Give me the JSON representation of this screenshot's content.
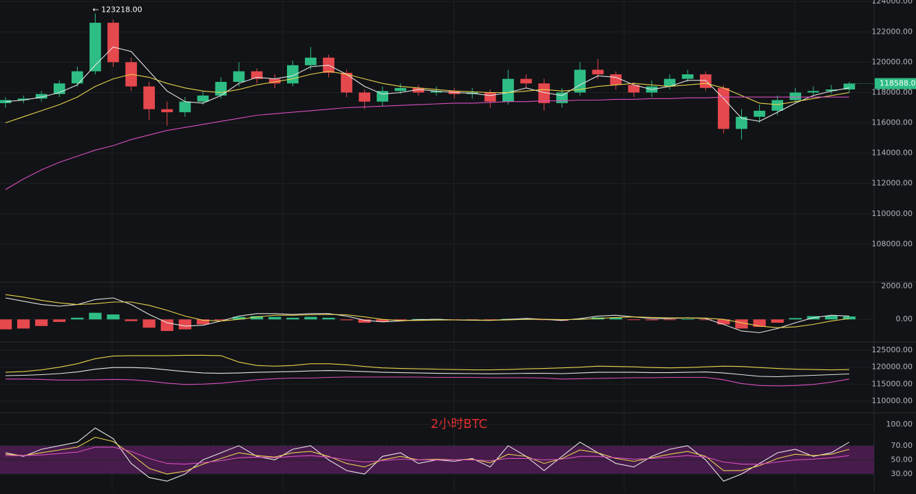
{
  "chart_data": [
    {
      "type": "candlestick",
      "open": [
        117300,
        117500,
        117600,
        117900,
        118600,
        119400,
        122600,
        120000,
        118400,
        116900,
        116700,
        117400,
        117800,
        118700,
        119400,
        118900,
        118600,
        119800,
        120300,
        119300,
        118000,
        117400,
        118100,
        118300,
        118000,
        118100,
        117900,
        118000,
        117400,
        118900,
        118600,
        117300,
        118000,
        119500,
        119200,
        118500,
        118000,
        118400,
        118900,
        119200,
        118300,
        115600,
        116400,
        116800,
        117500,
        118000,
        118100,
        118200
      ],
      "high": [
        117700,
        117800,
        118100,
        118800,
        119700,
        123218,
        122800,
        120300,
        118700,
        117400,
        117700,
        118100,
        119000,
        120000,
        119600,
        119200,
        120100,
        121000,
        120500,
        119500,
        118200,
        118400,
        118600,
        118500,
        118400,
        118300,
        118300,
        118200,
        119500,
        119200,
        118900,
        118300,
        120000,
        120200,
        119400,
        118700,
        118800,
        119200,
        119500,
        119400,
        118500,
        116900,
        117200,
        117800,
        118300,
        118400,
        118500,
        118700
      ],
      "low": [
        117000,
        117300,
        117400,
        117700,
        118400,
        119200,
        119700,
        118100,
        116200,
        115800,
        116400,
        117200,
        117600,
        118400,
        118600,
        118300,
        118400,
        119500,
        119000,
        117700,
        116900,
        117100,
        117900,
        117800,
        117800,
        117600,
        117600,
        117000,
        117200,
        118300,
        116800,
        117000,
        117800,
        118900,
        118200,
        117700,
        117700,
        118200,
        118700,
        118100,
        115300,
        114900,
        116000,
        116500,
        117300,
        117800,
        117900,
        118000
      ],
      "close": [
        117500,
        117600,
        117900,
        118600,
        119400,
        122600,
        120000,
        118400,
        116900,
        116700,
        117400,
        117800,
        118700,
        119400,
        118900,
        118600,
        119800,
        120300,
        119300,
        118000,
        117400,
        118100,
        118300,
        118000,
        118100,
        117900,
        118000,
        117400,
        118900,
        118600,
        117300,
        118000,
        119500,
        119200,
        118500,
        118000,
        118400,
        118900,
        119200,
        118300,
        115600,
        116400,
        116800,
        117500,
        118000,
        118100,
        118200,
        118588
      ],
      "up_color": "#2ebd85",
      "down_color": "#e5484d",
      "series": [
        {
          "color": "#e6e6e6",
          "values": [
            117400,
            117500,
            117700,
            118000,
            118500,
            119800,
            121000,
            120700,
            119400,
            118100,
            117400,
            117300,
            117800,
            118600,
            119000,
            118900,
            119100,
            119700,
            119800,
            119200,
            118400,
            117900,
            118000,
            118200,
            118100,
            118000,
            117950,
            117800,
            118000,
            118300,
            118000,
            117800,
            118500,
            119100,
            119000,
            118500,
            118200,
            118400,
            118800,
            118800,
            117600,
            116300,
            116100,
            116700,
            117300,
            117800,
            118100,
            118300
          ]
        },
        {
          "color": "#e8d44d",
          "values": [
            116000,
            116400,
            116800,
            117200,
            117700,
            118400,
            118900,
            119200,
            119000,
            118600,
            118300,
            118100,
            118000,
            118200,
            118500,
            118700,
            118900,
            119200,
            119400,
            119200,
            118900,
            118600,
            118400,
            118300,
            118200,
            118100,
            118050,
            118000,
            118000,
            118100,
            118200,
            118100,
            118200,
            118400,
            118500,
            118600,
            118500,
            118400,
            118500,
            118600,
            118300,
            117800,
            117300,
            117200,
            117400,
            117600,
            117800,
            118000
          ]
        },
        {
          "color": "#d94fc0",
          "values": [
            111600,
            112300,
            112900,
            113400,
            113800,
            114200,
            114500,
            114900,
            115200,
            115500,
            115700,
            115900,
            116100,
            116300,
            116500,
            116600,
            116700,
            116800,
            116900,
            117000,
            117050,
            117100,
            117150,
            117200,
            117250,
            117300,
            117300,
            117350,
            117400,
            117400,
            117450,
            117450,
            117500,
            117500,
            117550,
            117550,
            117600,
            117600,
            117650,
            117650,
            117700,
            117700,
            117700,
            117700,
            117700,
            117700,
            117700,
            117700
          ]
        }
      ],
      "ylim": [
        105500,
        124100
      ],
      "yticks": [
        {
          "value": 108000,
          "label": "108000.00"
        },
        {
          "value": 110000,
          "label": "110000.00"
        },
        {
          "value": 112000,
          "label": "112000.00"
        },
        {
          "value": 114000,
          "label": "114000.00"
        },
        {
          "value": 116000,
          "label": "116000.00"
        },
        {
          "value": 118000,
          "label": "118000.00"
        },
        {
          "value": 120000,
          "label": "120000.00"
        },
        {
          "value": 122000,
          "label": "122000.00"
        },
        {
          "value": 124000,
          "label": "124000.00"
        }
      ],
      "high_label": "← 123218.00",
      "last_price_label": "118588.00"
    },
    {
      "type": "macd",
      "values": [
        -600,
        -550,
        -400,
        -150,
        100,
        400,
        300,
        -100,
        -500,
        -700,
        -600,
        -300,
        -50,
        150,
        200,
        150,
        100,
        150,
        100,
        -50,
        -200,
        -150,
        -50,
        20,
        30,
        -20,
        -30,
        -40,
        30,
        40,
        -20,
        -80,
        50,
        120,
        100,
        -30,
        -50,
        -10,
        30,
        -20,
        -300,
        -550,
        -450,
        -200,
        80,
        200,
        220,
        180
      ],
      "up_color": "#2ebd85",
      "down_color": "#e5484d",
      "series": [
        {
          "color": "#e6e6e6",
          "values": [
            1300,
            1100,
            900,
            800,
            900,
            1200,
            1300,
            900,
            300,
            -200,
            -400,
            -350,
            -100,
            200,
            350,
            350,
            300,
            350,
            350,
            200,
            -50,
            -150,
            -100,
            -20,
            0,
            -30,
            -50,
            -60,
            0,
            60,
            0,
            -60,
            50,
            200,
            250,
            150,
            50,
            50,
            100,
            50,
            -300,
            -700,
            -800,
            -550,
            -200,
            100,
            250,
            200
          ]
        },
        {
          "color": "#e8d44d",
          "values": [
            1500,
            1350,
            1150,
            1000,
            900,
            950,
            1050,
            1050,
            850,
            550,
            200,
            -50,
            -100,
            0,
            150,
            250,
            250,
            280,
            300,
            280,
            150,
            0,
            -70,
            -60,
            -40,
            -30,
            -40,
            -50,
            -30,
            0,
            10,
            -10,
            0,
            60,
            120,
            150,
            120,
            90,
            90,
            80,
            0,
            -200,
            -400,
            -500,
            -450,
            -300,
            -100,
            50
          ]
        }
      ],
      "ylim": [
        -1362,
        2255
      ],
      "yticks": [
        {
          "value": 0,
          "label": "0.00"
        },
        {
          "value": 2000,
          "label": "2000.00"
        }
      ]
    },
    {
      "type": "lines",
      "series": [
        {
          "color": "#e8d44d",
          "values": [
            118500,
            118700,
            119200,
            120000,
            121000,
            122500,
            123300,
            123400,
            123400,
            123400,
            123500,
            123500,
            123400,
            121500,
            120500,
            120300,
            120500,
            121000,
            121000,
            120700,
            120200,
            119800,
            119600,
            119500,
            119400,
            119300,
            119200,
            119200,
            119300,
            119500,
            119600,
            119800,
            120000,
            120300,
            120200,
            120100,
            119900,
            119800,
            119900,
            120100,
            120300,
            120200,
            119900,
            119600,
            119400,
            119300,
            119200,
            119300
          ]
        },
        {
          "color": "#e6e6e6",
          "values": [
            117500,
            117600,
            117800,
            118100,
            118600,
            119400,
            119900,
            119900,
            119700,
            119200,
            118700,
            118300,
            118200,
            118300,
            118500,
            118600,
            118700,
            118900,
            119000,
            118900,
            118700,
            118500,
            118400,
            118300,
            118200,
            118150,
            118100,
            118050,
            118100,
            118200,
            118200,
            118100,
            118300,
            118500,
            118500,
            118500,
            118400,
            118400,
            118500,
            118600,
            118300,
            117800,
            117300,
            117200,
            117400,
            117600,
            117800,
            118000
          ]
        },
        {
          "color": "#d94fc0",
          "values": [
            116500,
            116500,
            116400,
            116200,
            116200,
            116300,
            116400,
            116300,
            115900,
            115300,
            114900,
            115000,
            115300,
            115800,
            116300,
            116600,
            116800,
            116800,
            117000,
            117100,
            117100,
            117100,
            117100,
            117100,
            117000,
            117000,
            117000,
            116900,
            116900,
            116900,
            116800,
            116500,
            116600,
            116700,
            116800,
            116900,
            116900,
            117000,
            117000,
            117000,
            116300,
            115200,
            114600,
            114500,
            114600,
            114900,
            115600,
            116500
          ]
        }
      ],
      "ylim": [
        106560,
        127430
      ],
      "yticks": [
        {
          "value": 110000,
          "label": "110000.00"
        },
        {
          "value": 115000,
          "label": "115000.00"
        },
        {
          "value": 120000,
          "label": "120000.00"
        },
        {
          "value": 125000,
          "label": "125000.00"
        }
      ]
    },
    {
      "type": "rsi",
      "title": "2小时BTC",
      "band": [
        30,
        70
      ],
      "series": [
        {
          "color": "#e6e6e6",
          "values": [
            60,
            55,
            65,
            70,
            75,
            95,
            80,
            45,
            25,
            20,
            30,
            50,
            60,
            70,
            55,
            50,
            65,
            70,
            50,
            35,
            30,
            55,
            60,
            45,
            50,
            48,
            52,
            40,
            70,
            55,
            35,
            55,
            75,
            60,
            45,
            40,
            55,
            65,
            70,
            50,
            20,
            30,
            45,
            60,
            65,
            55,
            60,
            75
          ]
        },
        {
          "color": "#e8d44d",
          "values": [
            58,
            56,
            60,
            64,
            68,
            82,
            76,
            58,
            38,
            30,
            34,
            44,
            52,
            60,
            56,
            54,
            60,
            62,
            55,
            45,
            40,
            50,
            55,
            50,
            51,
            50,
            51,
            46,
            58,
            55,
            45,
            52,
            64,
            60,
            52,
            48,
            53,
            58,
            62,
            55,
            35,
            35,
            42,
            52,
            58,
            56,
            58,
            65
          ]
        },
        {
          "color": "#d94fc0",
          "values": [
            56,
            56,
            57,
            59,
            61,
            68,
            68,
            62,
            52,
            45,
            44,
            46,
            49,
            53,
            54,
            53,
            55,
            56,
            54,
            50,
            47,
            49,
            51,
            50,
            50,
            50,
            50,
            49,
            52,
            52,
            50,
            51,
            55,
            55,
            53,
            51,
            52,
            54,
            56,
            54,
            47,
            44,
            44,
            47,
            50,
            51,
            53,
            56
          ]
        }
      ],
      "ylim": [
        5.7,
        116.5
      ],
      "yticks": [
        {
          "value": 30,
          "label": "30.00"
        },
        {
          "value": 50,
          "label": "50.00"
        },
        {
          "value": 70,
          "label": "70.00"
        },
        {
          "value": 100,
          "label": "100.00"
        }
      ]
    }
  ]
}
